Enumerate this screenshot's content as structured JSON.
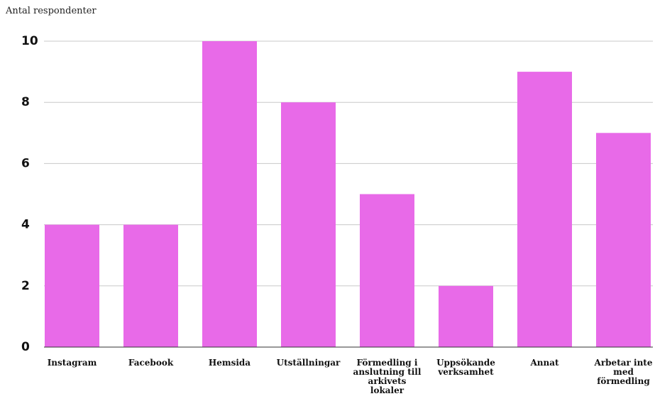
{
  "chart_data": {
    "type": "bar",
    "ylabel": "Antal respondenter",
    "xlabel": "",
    "categories": [
      "Instagram",
      "Facebook",
      "Hemsida",
      "Utställningar",
      "Förmedling i anslutning till arkivets lokaler",
      "Uppsökande verksamhet",
      "Annat",
      "Arbetar inte med förmedling"
    ],
    "category_label_lines": [
      [
        "Instagram"
      ],
      [
        "Facebook"
      ],
      [
        "Hemsida"
      ],
      [
        "Utställningar"
      ],
      [
        "Förmedling i",
        "anslutning till",
        "arkivets",
        "lokaler"
      ],
      [
        "Uppsökande",
        "verksamhet"
      ],
      [
        "Annat"
      ],
      [
        "Arbetar inte",
        "med",
        "förmedling"
      ]
    ],
    "values": [
      4,
      4,
      10,
      8,
      5,
      2,
      9,
      7
    ],
    "ylim": [
      0,
      10
    ],
    "yticks": [
      0,
      2,
      4,
      6,
      8,
      10
    ],
    "grid": true,
    "bar_color": "#e86ae8",
    "grid_color": "#c8c8c8"
  }
}
